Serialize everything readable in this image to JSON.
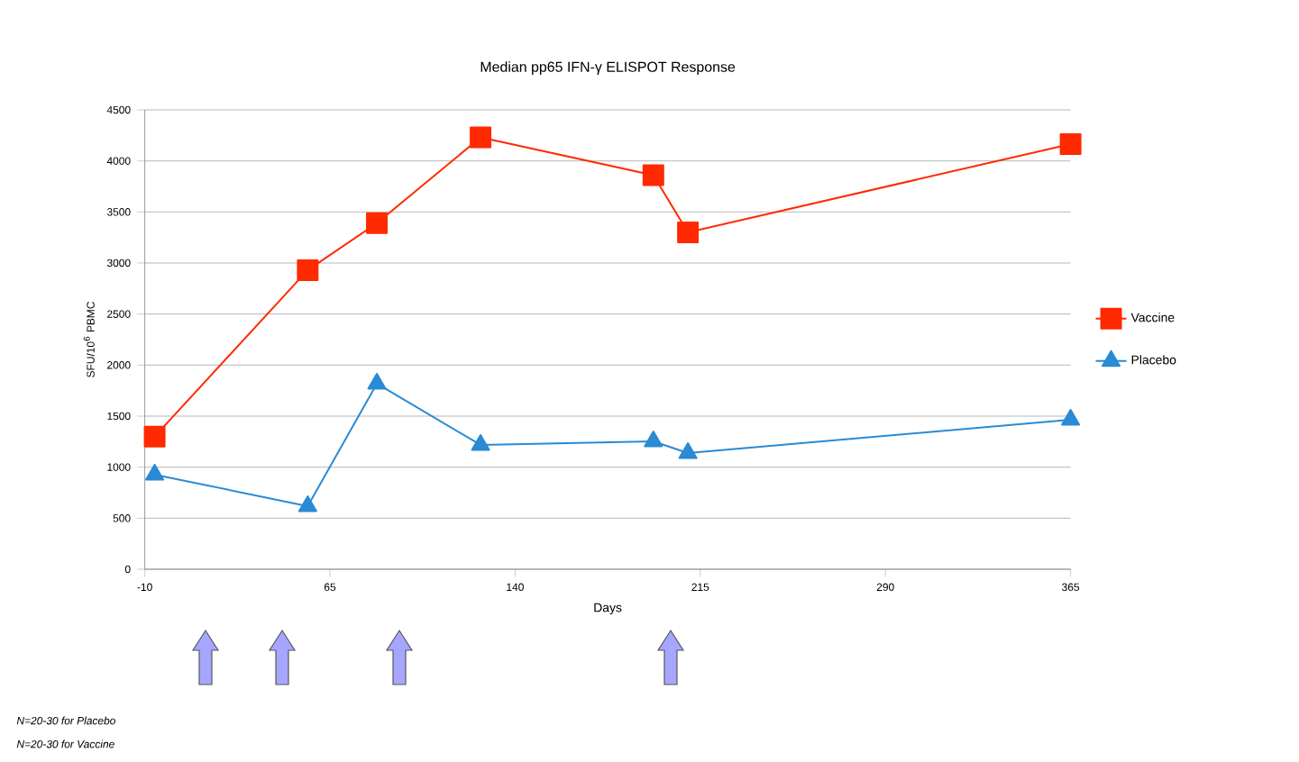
{
  "chart_data": {
    "type": "line",
    "title": "Median pp65 IFN-γ ELISPOT Response",
    "xlabel": "Days",
    "ylabel": "SFU/10$^{6}$ PBMC",
    "xlim": [
      -10,
      365
    ],
    "xticks": [
      -10,
      65,
      140,
      215,
      290,
      365
    ],
    "ylim": [
      0,
      4500
    ],
    "yticks": [
      0,
      500,
      1000,
      1500,
      2000,
      2500,
      3000,
      3500,
      4000,
      4500
    ],
    "grid": "y",
    "legend": "right",
    "series": [
      {
        "name": "Vaccine",
        "color": "#ff2a00",
        "marker": "square",
        "x": [
          -6,
          56,
          84,
          126,
          196,
          210,
          365
        ],
        "values": [
          1300,
          2930,
          3390,
          4230,
          3860,
          3300,
          4165
        ]
      },
      {
        "name": "Placebo",
        "color": "#2a8ad4",
        "marker": "triangle",
        "x": [
          -6,
          56,
          84,
          126,
          196,
          210,
          365
        ],
        "values": [
          927,
          618,
          1818,
          1218,
          1253,
          1138,
          1465
        ]
      }
    ],
    "annotations": [
      "N=20-30 for Placebo",
      "N=20-30 for Vaccine"
    ]
  }
}
